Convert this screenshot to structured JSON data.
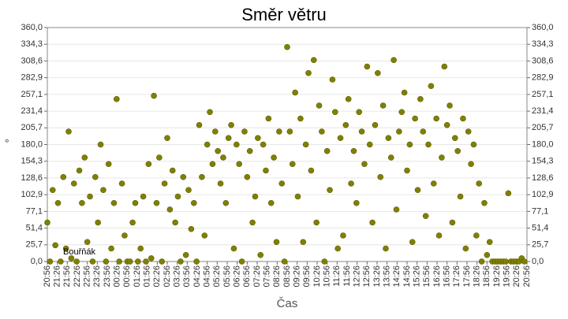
{
  "chart_data": {
    "type": "scatter",
    "title": "Směr větru",
    "x_label": "Čas",
    "y_label": "°",
    "annotation": "Bouřňák",
    "color": "#808000",
    "grid": true,
    "xlim": [
      0,
      1440
    ],
    "ylim": [
      0,
      360
    ],
    "xticks": [
      {
        "value": 0,
        "label": "20:56"
      },
      {
        "value": 30,
        "label": "21:26"
      },
      {
        "value": 60,
        "label": "21:56"
      },
      {
        "value": 90,
        "label": "22:26"
      },
      {
        "value": 120,
        "label": "22:56"
      },
      {
        "value": 150,
        "label": "23:26"
      },
      {
        "value": 180,
        "label": "23:56"
      },
      {
        "value": 210,
        "label": "00:26"
      },
      {
        "value": 240,
        "label": "00:56"
      },
      {
        "value": 270,
        "label": "01:26"
      },
      {
        "value": 300,
        "label": "01:56"
      },
      {
        "value": 330,
        "label": "02:26"
      },
      {
        "value": 360,
        "label": "02:56"
      },
      {
        "value": 390,
        "label": "03:26"
      },
      {
        "value": 420,
        "label": "03:56"
      },
      {
        "value": 450,
        "label": "04:26"
      },
      {
        "value": 480,
        "label": "04:56"
      },
      {
        "value": 510,
        "label": "05:26"
      },
      {
        "value": 540,
        "label": "05:56"
      },
      {
        "value": 570,
        "label": "06:26"
      },
      {
        "value": 600,
        "label": "06:56"
      },
      {
        "value": 630,
        "label": "07:26"
      },
      {
        "value": 660,
        "label": "07:56"
      },
      {
        "value": 690,
        "label": "08:26"
      },
      {
        "value": 720,
        "label": "08:56"
      },
      {
        "value": 750,
        "label": "09:26"
      },
      {
        "value": 780,
        "label": "09:56"
      },
      {
        "value": 810,
        "label": "10:26"
      },
      {
        "value": 840,
        "label": "10:56"
      },
      {
        "value": 870,
        "label": "11:26"
      },
      {
        "value": 900,
        "label": "11:56"
      },
      {
        "value": 930,
        "label": "12:26"
      },
      {
        "value": 960,
        "label": "12:56"
      },
      {
        "value": 990,
        "label": "13:26"
      },
      {
        "value": 1020,
        "label": "13:56"
      },
      {
        "value": 1050,
        "label": "14:26"
      },
      {
        "value": 1080,
        "label": "14:56"
      },
      {
        "value": 1110,
        "label": "15:26"
      },
      {
        "value": 1140,
        "label": "15:56"
      },
      {
        "value": 1170,
        "label": "16:26"
      },
      {
        "value": 1200,
        "label": "16:56"
      },
      {
        "value": 1230,
        "label": "17:26"
      },
      {
        "value": 1260,
        "label": "17:56"
      },
      {
        "value": 1290,
        "label": "18:26"
      },
      {
        "value": 1320,
        "label": "18:56"
      },
      {
        "value": 1350,
        "label": "19:26"
      },
      {
        "value": 1380,
        "label": "19:56"
      },
      {
        "value": 1410,
        "label": "20:26"
      },
      {
        "value": 1440,
        "label": "20:56"
      }
    ],
    "yticks": [
      {
        "value": 0,
        "label": "0,0"
      },
      {
        "value": 25.7,
        "label": "25,7"
      },
      {
        "value": 51.4,
        "label": "51,4"
      },
      {
        "value": 77.1,
        "label": "77,1"
      },
      {
        "value": 102.9,
        "label": "102,9"
      },
      {
        "value": 128.6,
        "label": "128,6"
      },
      {
        "value": 154.3,
        "label": "154,3"
      },
      {
        "value": 180,
        "label": "180,0"
      },
      {
        "value": 205.7,
        "label": "205,7"
      },
      {
        "value": 231.4,
        "label": "231,4"
      },
      {
        "value": 257.1,
        "label": "257,1"
      },
      {
        "value": 282.9,
        "label": "282,9"
      },
      {
        "value": 308.6,
        "label": "308,6"
      },
      {
        "value": 334.3,
        "label": "334,3"
      },
      {
        "value": 360,
        "label": "360,0"
      }
    ],
    "x": [
      0,
      8,
      16,
      24,
      32,
      40,
      48,
      56,
      64,
      72,
      80,
      88,
      96,
      104,
      112,
      120,
      128,
      136,
      144,
      152,
      160,
      168,
      176,
      184,
      192,
      200,
      208,
      216,
      224,
      232,
      240,
      248,
      256,
      264,
      272,
      280,
      288,
      296,
      304,
      312,
      320,
      328,
      336,
      344,
      352,
      360,
      368,
      376,
      384,
      392,
      400,
      408,
      416,
      424,
      432,
      440,
      448,
      456,
      464,
      472,
      480,
      488,
      496,
      504,
      512,
      520,
      528,
      536,
      544,
      552,
      560,
      568,
      576,
      584,
      592,
      600,
      608,
      616,
      624,
      632,
      640,
      648,
      656,
      664,
      672,
      680,
      688,
      696,
      704,
      712,
      720,
      728,
      736,
      744,
      752,
      760,
      768,
      776,
      784,
      792,
      800,
      808,
      816,
      824,
      832,
      840,
      848,
      856,
      864,
      872,
      880,
      888,
      896,
      904,
      912,
      920,
      928,
      936,
      944,
      952,
      960,
      968,
      976,
      984,
      992,
      1000,
      1008,
      1016,
      1024,
      1032,
      1040,
      1048,
      1056,
      1064,
      1072,
      1080,
      1088,
      1096,
      1104,
      1112,
      1120,
      1128,
      1136,
      1144,
      1152,
      1160,
      1168,
      1176,
      1184,
      1192,
      1200,
      1208,
      1216,
      1224,
      1232,
      1240,
      1248,
      1256,
      1264,
      1272,
      1280,
      1288,
      1296,
      1304,
      1312,
      1320,
      1328,
      1336,
      1344,
      1352,
      1360,
      1368,
      1376,
      1384,
      1392,
      1400,
      1408,
      1416,
      1424,
      1432
    ],
    "values": [
      60,
      0,
      110,
      25,
      90,
      0,
      130,
      20,
      200,
      5,
      120,
      0,
      140,
      90,
      160,
      30,
      100,
      0,
      130,
      60,
      180,
      110,
      0,
      150,
      20,
      90,
      250,
      0,
      120,
      40,
      0,
      0,
      60,
      90,
      0,
      20,
      100,
      0,
      150,
      5,
      255,
      90,
      160,
      0,
      120,
      190,
      80,
      140,
      60,
      100,
      0,
      130,
      10,
      110,
      50,
      90,
      0,
      210,
      130,
      40,
      180,
      230,
      150,
      200,
      170,
      120,
      160,
      90,
      190,
      210,
      20,
      180,
      150,
      0,
      200,
      130,
      170,
      60,
      100,
      190,
      10,
      180,
      140,
      220,
      90,
      160,
      30,
      200,
      120,
      0,
      330,
      200,
      150,
      260,
      100,
      220,
      30,
      180,
      290,
      140,
      310,
      60,
      240,
      200,
      0,
      170,
      110,
      280,
      230,
      20,
      190,
      40,
      210,
      250,
      120,
      170,
      90,
      230,
      200,
      150,
      300,
      180,
      60,
      210,
      290,
      130,
      240,
      20,
      190,
      160,
      310,
      80,
      200,
      230,
      260,
      140,
      180,
      30,
      220,
      110,
      250,
      200,
      70,
      180,
      270,
      120,
      220,
      40,
      160,
      300,
      210,
      240,
      60,
      190,
      170,
      100,
      220,
      20,
      200,
      150,
      180,
      40,
      120,
      0,
      90,
      10,
      30,
      0,
      0,
      0,
      0,
      0,
      0,
      105,
      0,
      0,
      0,
      0,
      5,
      0
    ]
  }
}
